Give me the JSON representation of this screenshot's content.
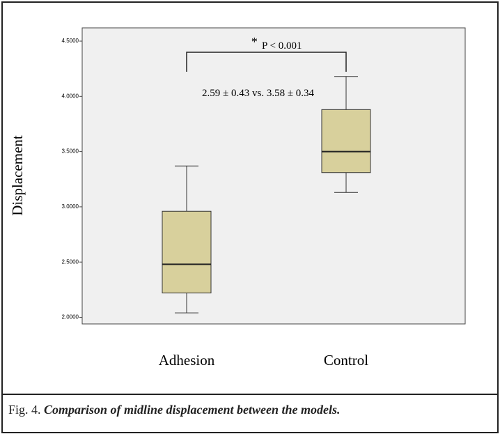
{
  "chart_data": {
    "type": "box",
    "y_label": "Displacement",
    "categories": [
      "Adhesion",
      "Control"
    ],
    "boxes": [
      {
        "min": 2.04,
        "q1": 2.22,
        "median": 2.48,
        "q3": 2.96,
        "max": 3.37
      },
      {
        "min": 3.13,
        "q1": 3.31,
        "median": 3.5,
        "q3": 3.88,
        "max": 4.18
      }
    ],
    "color": "#d8d09c",
    "ylim": [
      1.94,
      4.62
    ],
    "yticks": [
      {
        "value": 2.0,
        "label": "2.0000"
      },
      {
        "value": 2.5,
        "label": "2.5000"
      },
      {
        "value": 3.0,
        "label": "3.0000"
      },
      {
        "value": 3.5,
        "label": "3.5000"
      },
      {
        "value": 4.0,
        "label": "4.0000"
      },
      {
        "value": 4.5,
        "label": "4.5000"
      }
    ],
    "annotations": {
      "significance_star": "*",
      "significance": "P < 0.001",
      "summary": "2.59 ± 0.43 vs. 3.58 ± 0.34"
    }
  },
  "caption": {
    "label": "Fig. 4.",
    "text": "Comparison of  midline displacement between the models."
  }
}
